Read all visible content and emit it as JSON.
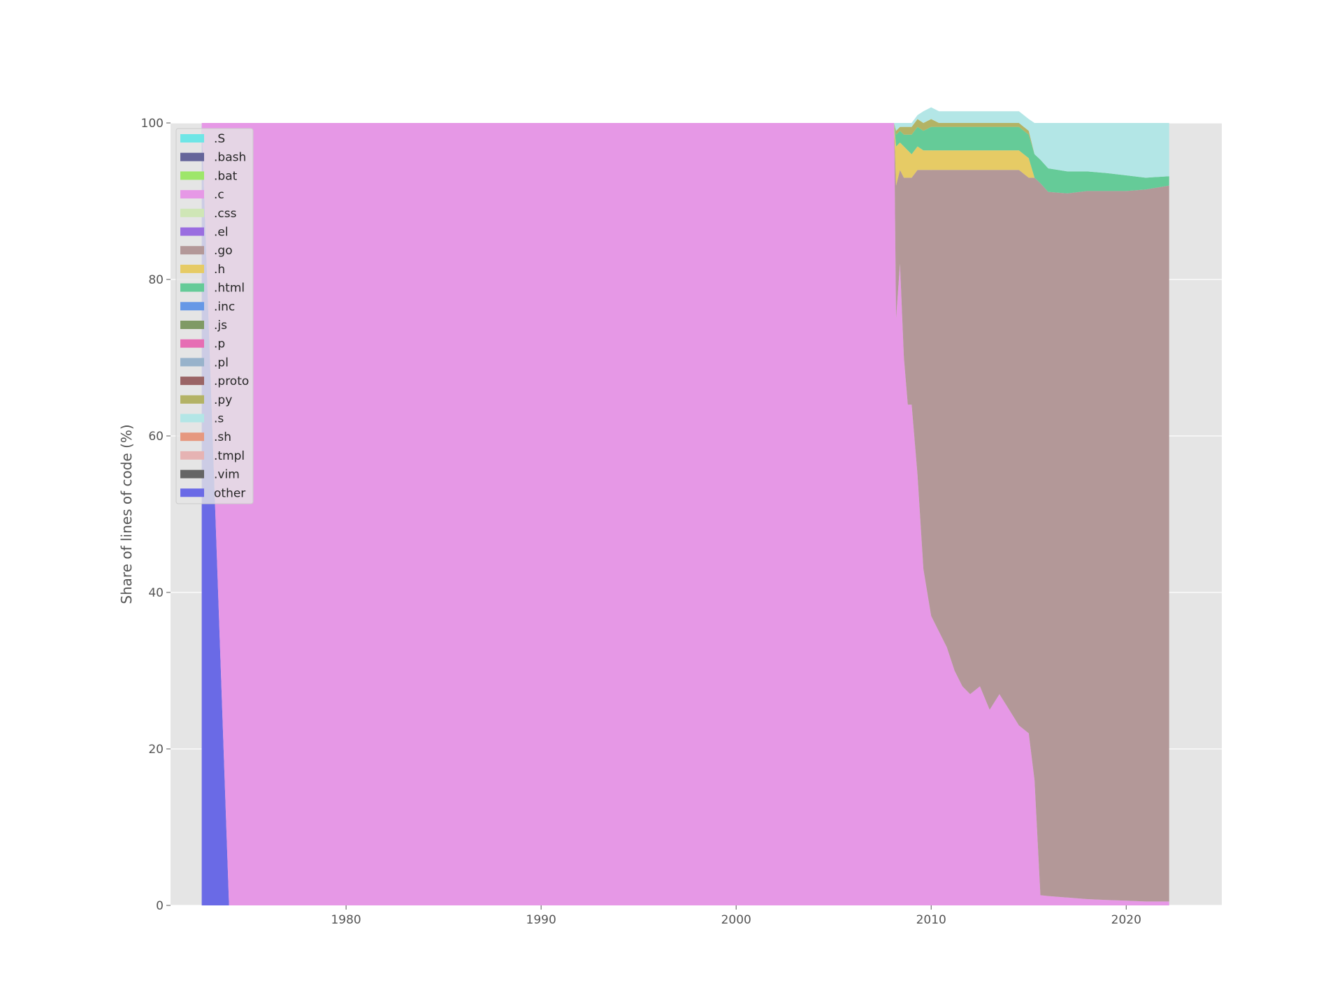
{
  "chart_data": {
    "type": "area",
    "stacked": true,
    "title": "",
    "xlabel": "",
    "ylabel": "Share of lines of code (%)",
    "xlim": [
      1971.0,
      2024.9
    ],
    "ylim": [
      0,
      100
    ],
    "x_ticks": [
      1980,
      1990,
      2000,
      2010,
      2020
    ],
    "y_ticks": [
      0,
      20,
      40,
      60,
      80,
      100
    ],
    "grid": true,
    "legend_position": "upper-left",
    "background": "#e5e5e5",
    "legend": [
      {
        "label": ".S",
        "color": "#6ee6e6"
      },
      {
        "label": ".bash",
        "color": "#65659a"
      },
      {
        "label": ".bat",
        "color": "#9ee66a"
      },
      {
        "label": ".c",
        "color": "#e698e6"
      },
      {
        "label": ".css",
        "color": "#cfe6b6"
      },
      {
        "label": ".el",
        "color": "#9a6ee0"
      },
      {
        "label": ".go",
        "color": "#b39898"
      },
      {
        "label": ".h",
        "color": "#e6cb65"
      },
      {
        "label": ".html",
        "color": "#65cb98"
      },
      {
        "label": ".inc",
        "color": "#6698e6"
      },
      {
        "label": ".js",
        "color": "#7f9a65"
      },
      {
        "label": ".p",
        "color": "#e66eb4"
      },
      {
        "label": ".pl",
        "color": "#98b3cb"
      },
      {
        "label": ".proto",
        "color": "#9a6565"
      },
      {
        "label": ".py",
        "color": "#b3b365"
      },
      {
        "label": ".s",
        "color": "#b3e6e6"
      },
      {
        "label": ".sh",
        "color": "#e6987f"
      },
      {
        "label": ".tmpl",
        "color": "#e6b3b3"
      },
      {
        "label": ".vim",
        "color": "#656565"
      },
      {
        "label": "other",
        "color": "#6a6ae6"
      }
    ],
    "x": [
      1972.6,
      1974.0,
      2008.1,
      2008.2,
      2008.4,
      2008.6,
      2008.8,
      2009.0,
      2009.3,
      2009.6,
      2010.0,
      2010.4,
      2010.8,
      2011.2,
      2011.6,
      2012.0,
      2012.5,
      2013.0,
      2013.5,
      2014.0,
      2014.5,
      2015.0,
      2015.3,
      2015.6,
      2016.0,
      2017.0,
      2018.0,
      2019.0,
      2020.0,
      2021.0,
      2022.2
    ],
    "series": [
      {
        "name": "other",
        "values": [
          100,
          0,
          0,
          0,
          0,
          0,
          0,
          0,
          0,
          0,
          0,
          0,
          0,
          0,
          0,
          0,
          0,
          0,
          0,
          0,
          0,
          0,
          0,
          0,
          0,
          0,
          0,
          0,
          0,
          0,
          0
        ]
      },
      {
        "name": ".c",
        "values": [
          0,
          100,
          100,
          75,
          82,
          70,
          64,
          64,
          55,
          43,
          37,
          35,
          33,
          30,
          28,
          27,
          28,
          25,
          27,
          25,
          23,
          22,
          16,
          1.3,
          1.2,
          1.0,
          0.8,
          0.7,
          0.6,
          0.5,
          0.5
        ]
      },
      {
        "name": ".go",
        "values": [
          0,
          0,
          0,
          17,
          12,
          23,
          29,
          29,
          39,
          51,
          57,
          59,
          61,
          64,
          66,
          67,
          66,
          69,
          67,
          69,
          71,
          71,
          77,
          91,
          90,
          90,
          90.5,
          90.6,
          90.7,
          91.0,
          91.5
        ]
      },
      {
        "name": ".h",
        "values": [
          0,
          0,
          0,
          5,
          3.5,
          4,
          3.5,
          3,
          3,
          2.5,
          2.5,
          2.5,
          2.5,
          2.5,
          2.5,
          2.5,
          2.5,
          2.5,
          2.5,
          2.5,
          2.5,
          2.5,
          0,
          0,
          0,
          0,
          0,
          0,
          0,
          0,
          0
        ]
      },
      {
        "name": ".html",
        "values": [
          0,
          0,
          0,
          1.5,
          1.5,
          1.5,
          2,
          2.5,
          2.5,
          2.5,
          3,
          3,
          3,
          3,
          3,
          3,
          3,
          3,
          3,
          3,
          3,
          3,
          3,
          3,
          3,
          2.8,
          2.5,
          2.3,
          2.0,
          1.5,
          1.2
        ]
      },
      {
        "name": ".py",
        "values": [
          0,
          0,
          0,
          0.5,
          0.5,
          1,
          1,
          1,
          1,
          1,
          1,
          0.5,
          0.5,
          0.5,
          0.5,
          0.5,
          0.5,
          0.5,
          0.5,
          0.5,
          0.5,
          0.5,
          0,
          0,
          0,
          0,
          0,
          0,
          0,
          0,
          0
        ]
      },
      {
        "name": ".s",
        "values": [
          0,
          0,
          0,
          1,
          0.5,
          0.5,
          0.5,
          0.5,
          0.5,
          1.5,
          1.5,
          1.5,
          1.5,
          1.5,
          1.5,
          1.5,
          1.5,
          1.5,
          1.5,
          1.5,
          1.5,
          1.5,
          4,
          4.7,
          5.8,
          6.2,
          6.2,
          6.4,
          6.7,
          7.0,
          6.8
        ]
      },
      {
        "name": ".sh",
        "values": [
          0,
          0,
          0,
          0,
          0,
          0,
          0,
          0,
          0,
          0,
          0,
          0,
          0,
          0,
          0,
          0,
          0,
          0,
          0,
          0,
          0,
          0,
          0,
          0,
          0,
          0,
          0,
          0,
          0,
          0,
          0
        ]
      }
    ]
  }
}
